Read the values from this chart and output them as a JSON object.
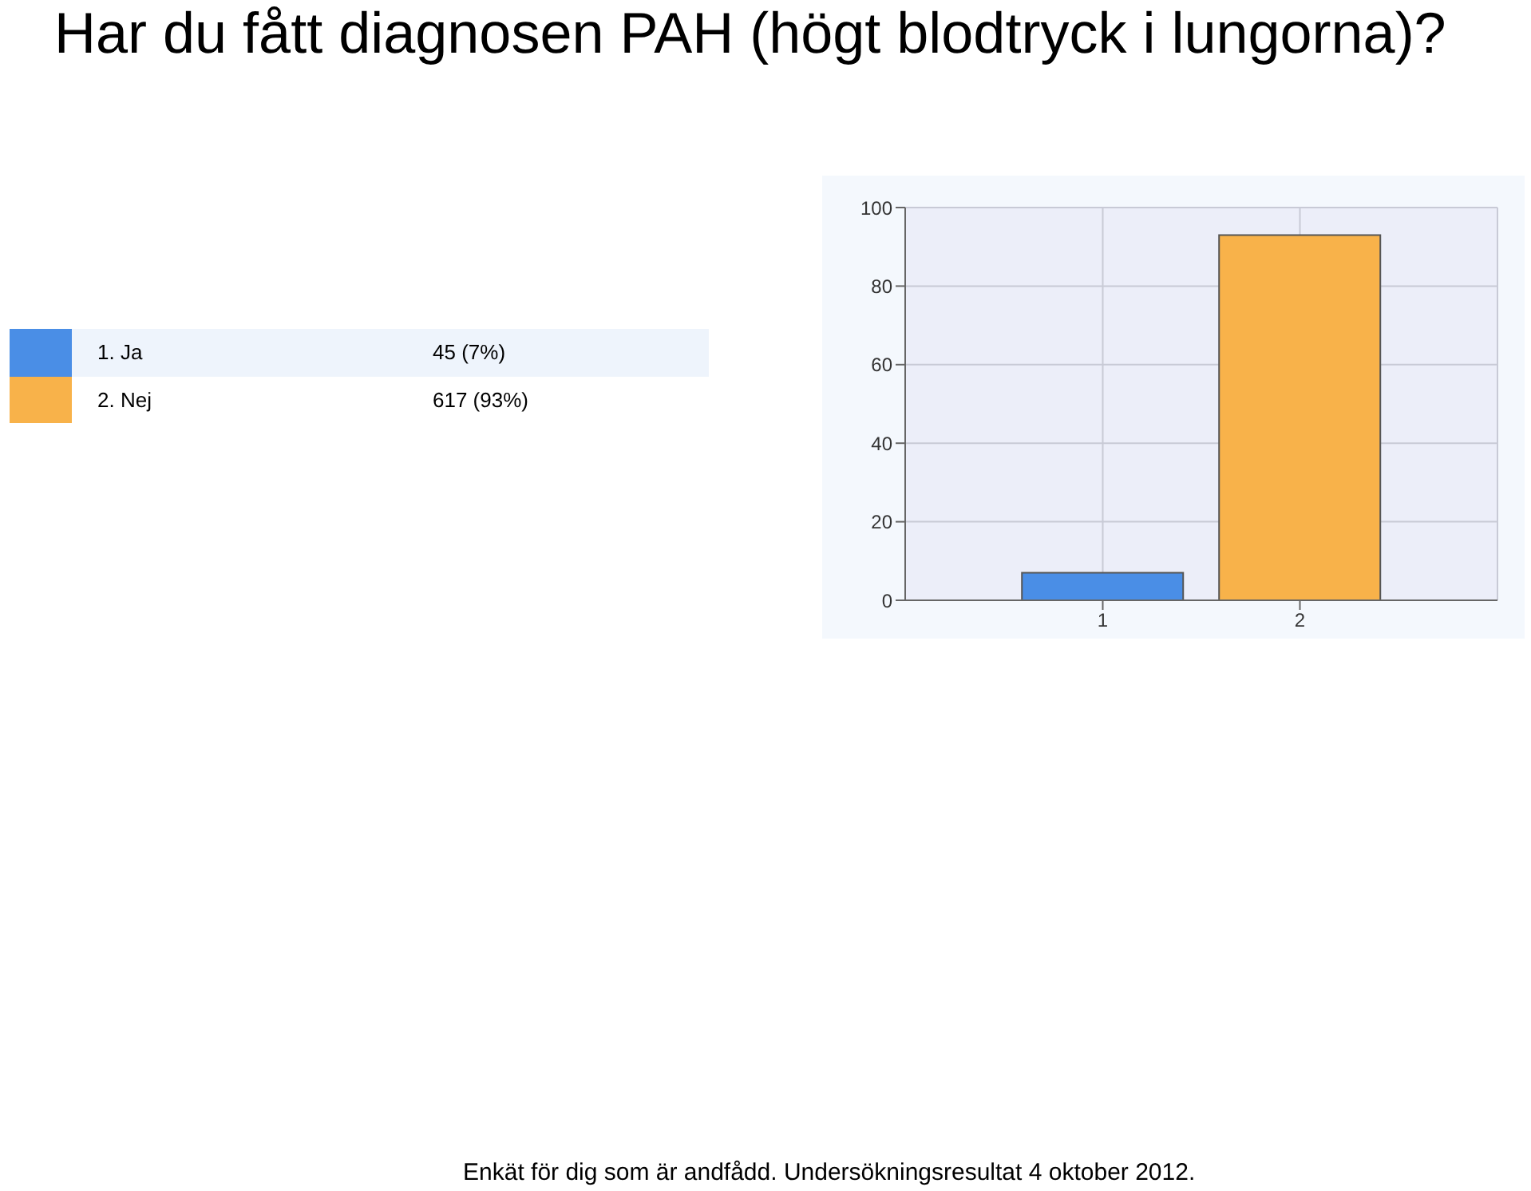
{
  "chart_data": {
    "type": "bar",
    "title": "Har du fått diagnosen PAH (högt blodtryck i lungorna)?",
    "categories": [
      "1",
      "2"
    ],
    "stacked": true,
    "series": [
      {
        "name": "1. Ja",
        "color": "#4a8ee6",
        "values": [
          7,
          null
        ]
      },
      {
        "name": "2. Nej",
        "color": "#f8b24a",
        "values": [
          null,
          93
        ]
      }
    ],
    "ylim": [
      0,
      100
    ],
    "yticks": [
      0,
      20,
      40,
      60,
      80,
      100
    ],
    "grid": true,
    "legend": "left",
    "annotations": [
      "45 (7%)",
      "617 (93%)",
      "Enkät för dig som är andfådd. Undersökningsresultat 4 oktober 2012."
    ]
  }
}
